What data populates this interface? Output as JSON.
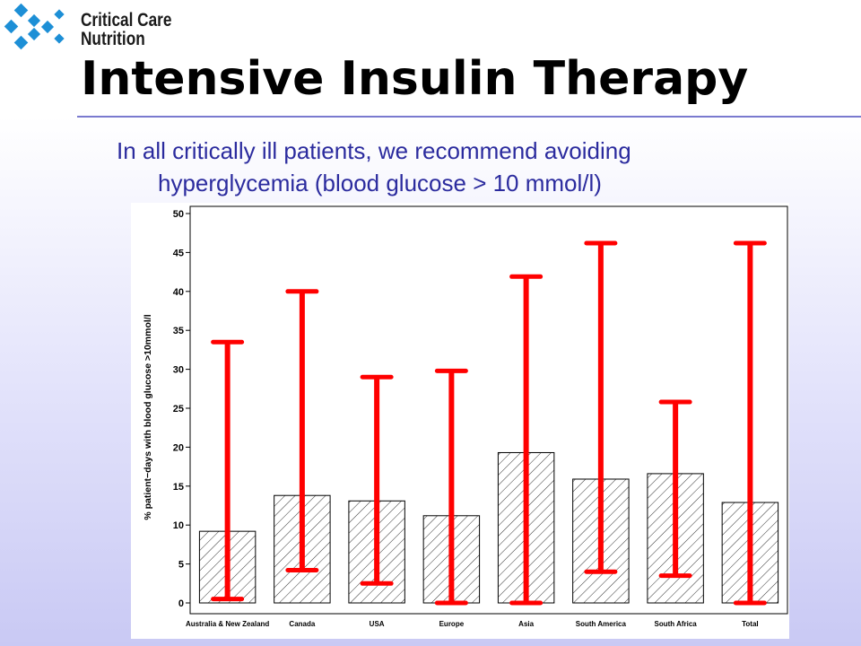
{
  "logo": {
    "line1": "Critical Care",
    "line2": "Nutrition",
    "accent": "#1d8fd6"
  },
  "slide": {
    "title": "Intensive Insulin Therapy",
    "subtitle_line1": "In all critically ill patients, we recommend avoiding",
    "subtitle_line2": "hyperglycemia (blood glucose > 10 mmol/l)",
    "title_color": "#000000",
    "subtitle_color": "#2b2b9e",
    "rule_color": "#7a7acf"
  },
  "chart_data": {
    "type": "bar",
    "title": "",
    "xlabel": "",
    "ylabel": "% patient−days with blood glucose >10mmol/l",
    "ylim": [
      0,
      50
    ],
    "yticks": [
      0,
      5,
      10,
      15,
      20,
      25,
      30,
      35,
      40,
      45,
      50
    ],
    "categories": [
      "Australia & New Zealand",
      "Canada",
      "USA",
      "Europe",
      "Asia",
      "South America",
      "South Africa",
      "Total"
    ],
    "values": [
      9.2,
      13.8,
      13.1,
      11.2,
      19.3,
      15.9,
      16.6,
      12.9
    ],
    "error_low": [
      0.5,
      4.2,
      2.5,
      0.0,
      0.0,
      4.0,
      3.5,
      0.0
    ],
    "error_high": [
      33.5,
      40.0,
      29.0,
      29.8,
      41.9,
      46.2,
      25.8,
      46.2
    ],
    "bar_fill": "hatched",
    "error_color": "#ff0000",
    "grid": false
  }
}
